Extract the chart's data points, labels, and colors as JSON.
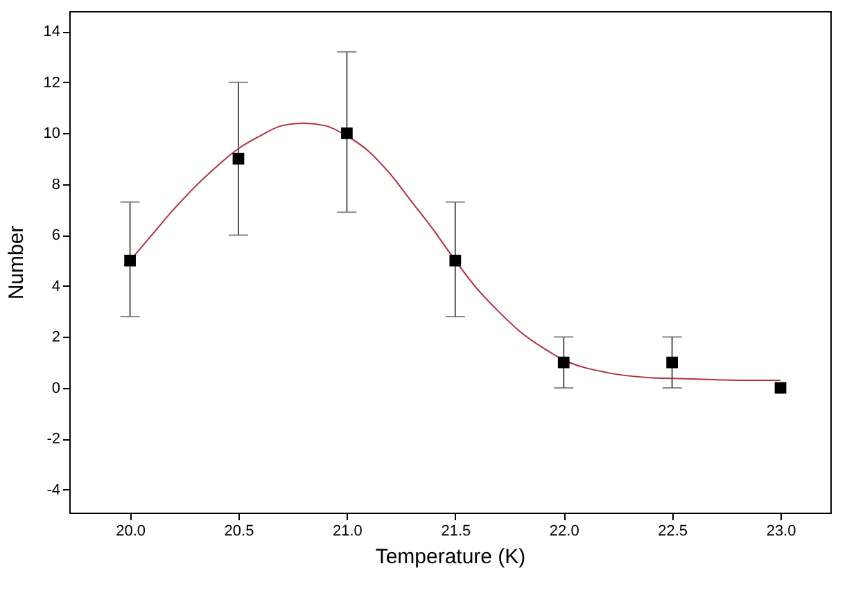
{
  "chart_data": {
    "type": "scatter",
    "xlabel": "Temperature (K)",
    "ylabel": "Number",
    "x": [
      20.0,
      20.5,
      21.0,
      21.5,
      22.0,
      22.5,
      23.0
    ],
    "series": [
      {
        "color": "#000000",
        "marker": "square",
        "values": [
          5,
          9,
          10,
          5,
          1,
          1,
          0
        ],
        "errors": [
          [
            2.8,
            7.3
          ],
          [
            6,
            12
          ],
          [
            6.9,
            13.2
          ],
          [
            2.8,
            7.3
          ],
          [
            0,
            2
          ],
          [
            0,
            2
          ],
          null
        ]
      },
      {
        "type": "line",
        "color": "#b03040",
        "marker": "none",
        "x": [
          20.0,
          20.1,
          20.2,
          20.3,
          20.4,
          20.5,
          20.6,
          20.7,
          20.8,
          20.9,
          21.0,
          21.1,
          21.2,
          21.3,
          21.4,
          21.5,
          21.6,
          21.7,
          21.8,
          21.9,
          22.0,
          22.2,
          22.4,
          22.6,
          22.8,
          23.0
        ],
        "values": [
          5.0,
          6.0,
          7.0,
          7.9,
          8.7,
          9.4,
          9.9,
          10.3,
          10.4,
          10.3,
          9.9,
          9.3,
          8.4,
          7.3,
          6.2,
          5.0,
          3.9,
          3.0,
          2.2,
          1.6,
          1.1,
          0.6,
          0.4,
          0.35,
          0.3,
          0.3
        ]
      }
    ],
    "xlim": [
      19.72,
      23.23
    ],
    "ylim": [
      -4.9,
      14.8
    ],
    "xticks": [
      {
        "value": 20,
        "label": "20.0"
      },
      {
        "value": 20.5,
        "label": "20.5"
      },
      {
        "value": 21,
        "label": "21.0"
      },
      {
        "value": 21.5,
        "label": "21.5"
      },
      {
        "value": 22,
        "label": "22.0"
      },
      {
        "value": 22.5,
        "label": "22.5"
      },
      {
        "value": 23,
        "label": "23.0"
      }
    ],
    "yticks": [
      -4,
      -2,
      0,
      2,
      4,
      6,
      8,
      10,
      12,
      14
    ]
  }
}
